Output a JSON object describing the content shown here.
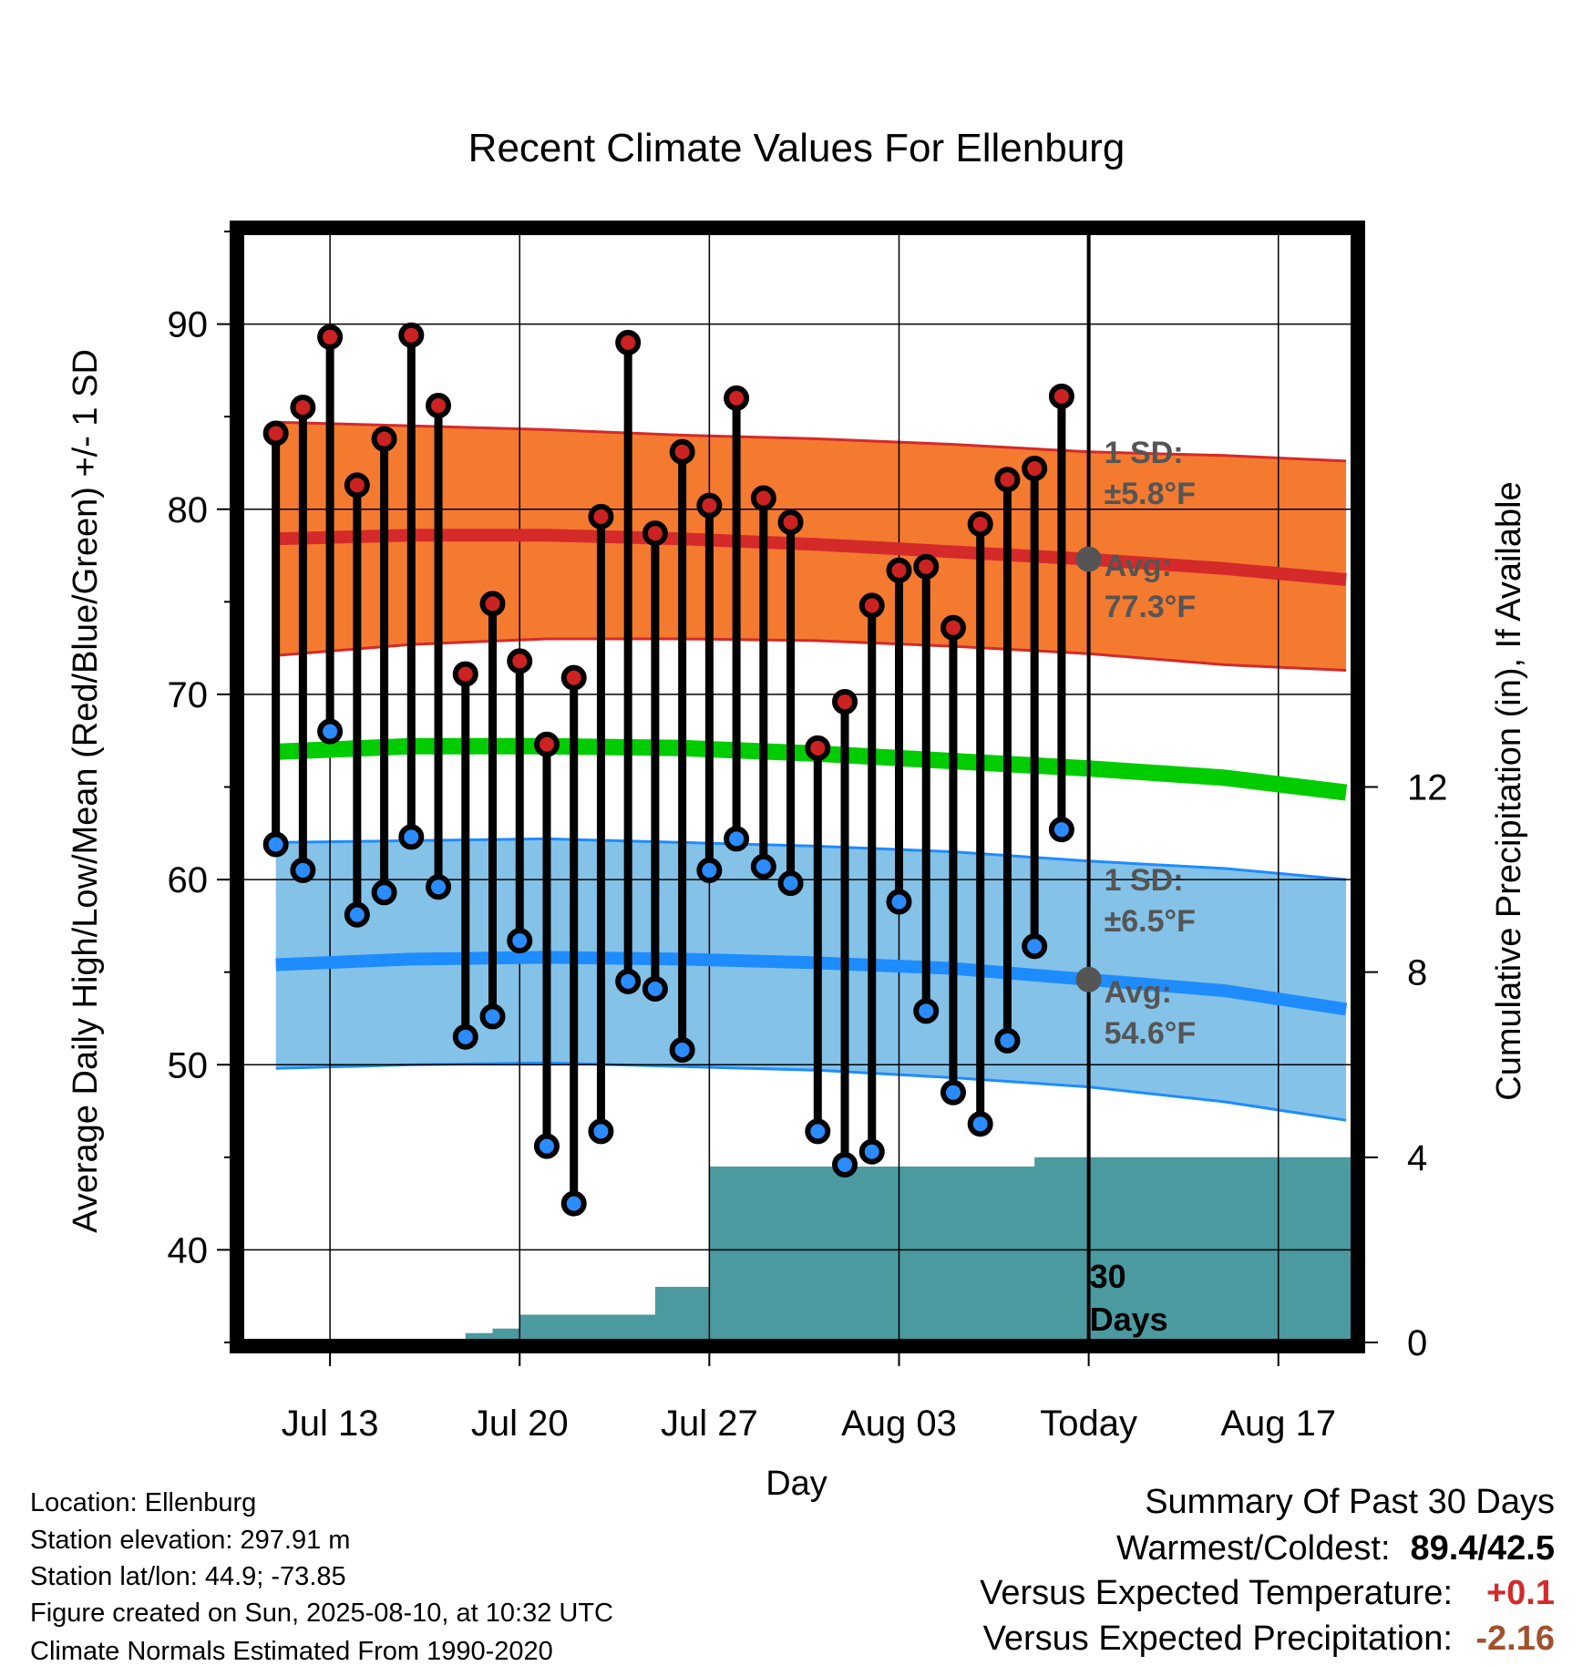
{
  "chart_data": {
    "type": "line",
    "title": "Recent Climate Values For Ellenburg",
    "xlabel": "Day",
    "ylabel": "Average Daily High/Low/Mean (Red/Blue/Green) +/- 1 SD",
    "y2label": "Cumulative Precipitation (in), If Available",
    "ylim": [
      35,
      95
    ],
    "y2lim": [
      0,
      24
    ],
    "yticks": [
      40,
      50,
      60,
      70,
      80,
      90
    ],
    "y2ticks": [
      0,
      4,
      8,
      12
    ],
    "xlim": [
      -3.3,
      37.8
    ],
    "xticks": [
      {
        "x": 0,
        "label": "Jul 13"
      },
      {
        "x": 7,
        "label": "Jul 20"
      },
      {
        "x": 14,
        "label": "Jul 27"
      },
      {
        "x": 21,
        "label": "Aug 03"
      },
      {
        "x": 28,
        "label": "Today"
      },
      {
        "x": 35,
        "label": "Aug 17"
      }
    ],
    "today_x": 28,
    "grid": true,
    "daily": {
      "x": [
        -2,
        -1,
        0,
        1,
        2,
        3,
        4,
        5,
        6,
        7,
        8,
        9,
        10,
        11,
        12,
        13,
        14,
        15,
        16,
        17,
        18,
        19,
        20,
        21,
        22,
        23,
        24,
        25,
        26,
        27
      ],
      "high": [
        84.1,
        85.5,
        89.3,
        81.3,
        83.8,
        89.4,
        85.6,
        71.1,
        74.9,
        71.8,
        67.3,
        70.9,
        79.6,
        89.0,
        78.7,
        83.1,
        80.2,
        86.0,
        80.6,
        79.3,
        67.1,
        69.6,
        74.8,
        76.7,
        76.9,
        73.6,
        79.2,
        81.6,
        82.2,
        86.1
      ],
      "low": [
        61.9,
        60.5,
        68.0,
        58.1,
        59.3,
        62.3,
        59.6,
        51.5,
        52.6,
        56.7,
        45.6,
        42.5,
        46.4,
        54.5,
        54.1,
        50.8,
        60.5,
        62.2,
        60.7,
        59.8,
        46.4,
        44.6,
        45.3,
        58.8,
        52.9,
        48.5,
        46.8,
        51.3,
        56.4,
        62.7
      ]
    },
    "normals": {
      "x": [
        -2,
        3,
        8,
        13,
        18,
        23,
        28,
        33,
        37.5
      ],
      "high_avg": [
        78.4,
        78.6,
        78.6,
        78.4,
        78.1,
        77.7,
        77.3,
        76.8,
        76.2
      ],
      "high_upper": [
        84.7,
        84.5,
        84.3,
        84.0,
        83.8,
        83.5,
        83.1,
        82.9,
        82.6
      ],
      "high_lower": [
        72.1,
        72.7,
        73.0,
        73.0,
        72.9,
        72.6,
        72.2,
        71.6,
        71.3
      ],
      "mean_avg": [
        66.9,
        67.2,
        67.2,
        67.1,
        66.8,
        66.4,
        66.0,
        65.5,
        64.7
      ],
      "low_avg": [
        55.4,
        55.7,
        55.8,
        55.7,
        55.5,
        55.2,
        54.6,
        54.0,
        53.0
      ],
      "low_upper": [
        62.0,
        62.1,
        62.2,
        62.0,
        61.8,
        61.5,
        61.0,
        60.6,
        60.0
      ],
      "low_lower": [
        49.8,
        50.0,
        50.1,
        49.9,
        49.7,
        49.3,
        48.8,
        48.0,
        47.0
      ]
    },
    "precip_cumulative": {
      "x": [
        -3.1,
        1,
        3,
        4,
        5,
        6,
        7,
        8,
        9,
        10,
        11,
        12,
        13,
        14,
        15,
        16,
        17,
        18,
        19,
        20,
        21,
        22,
        23,
        24,
        25,
        26,
        27,
        37.7
      ],
      "values": [
        0,
        0,
        0,
        0,
        0.2,
        0.3,
        0.6,
        0.6,
        0.6,
        0.6,
        0.6,
        1.2,
        1.2,
        3.8,
        3.8,
        3.8,
        3.8,
        3.8,
        3.8,
        3.8,
        3.8,
        3.8,
        3.8,
        3.8,
        3.8,
        4.0,
        4.0,
        4.0
      ]
    },
    "annotations": {
      "high_sd_label": "1 SD:",
      "high_sd_value": "±5.8°F",
      "high_avg_label": "Avg:",
      "high_avg_value": "77.3°F",
      "low_sd_label": "1 SD:",
      "low_sd_value": "±6.5°F",
      "low_avg_label": "Avg:",
      "low_avg_value": "54.6°F",
      "precip_label_1": "30",
      "precip_label_2": "Days"
    },
    "colors": {
      "high_band": "#f47a30",
      "high_line": "#d42a2a",
      "low_band": "#84c2e8",
      "low_line": "#1e8cff",
      "mean_line": "#00cc00",
      "precip_fill": "#4a9aa0",
      "high_dot": "#cc2222",
      "low_dot": "#2a8cff",
      "marker": "#555555"
    }
  },
  "info": {
    "location": "Location: Ellenburg",
    "elevation": "Station elevation: 297.91 m",
    "latlon": "Station lat/lon: 44.9; -73.85",
    "created": "Figure created on Sun, 2025-08-10, at 10:32 UTC",
    "normals": "Climate Normals Estimated From 1990-2020"
  },
  "summary": {
    "heading": "Summary Of Past 30 Days",
    "warm_cold_label": "Warmest/Coldest:",
    "warm_cold_value": "89.4/42.5",
    "temp_label": "Versus Expected Temperature:",
    "temp_value": "+0.1",
    "temp_color": "#d42a2a",
    "precip_label": "Versus Expected Precipitation:",
    "precip_value": "-2.16",
    "precip_color": "#a0522d"
  }
}
